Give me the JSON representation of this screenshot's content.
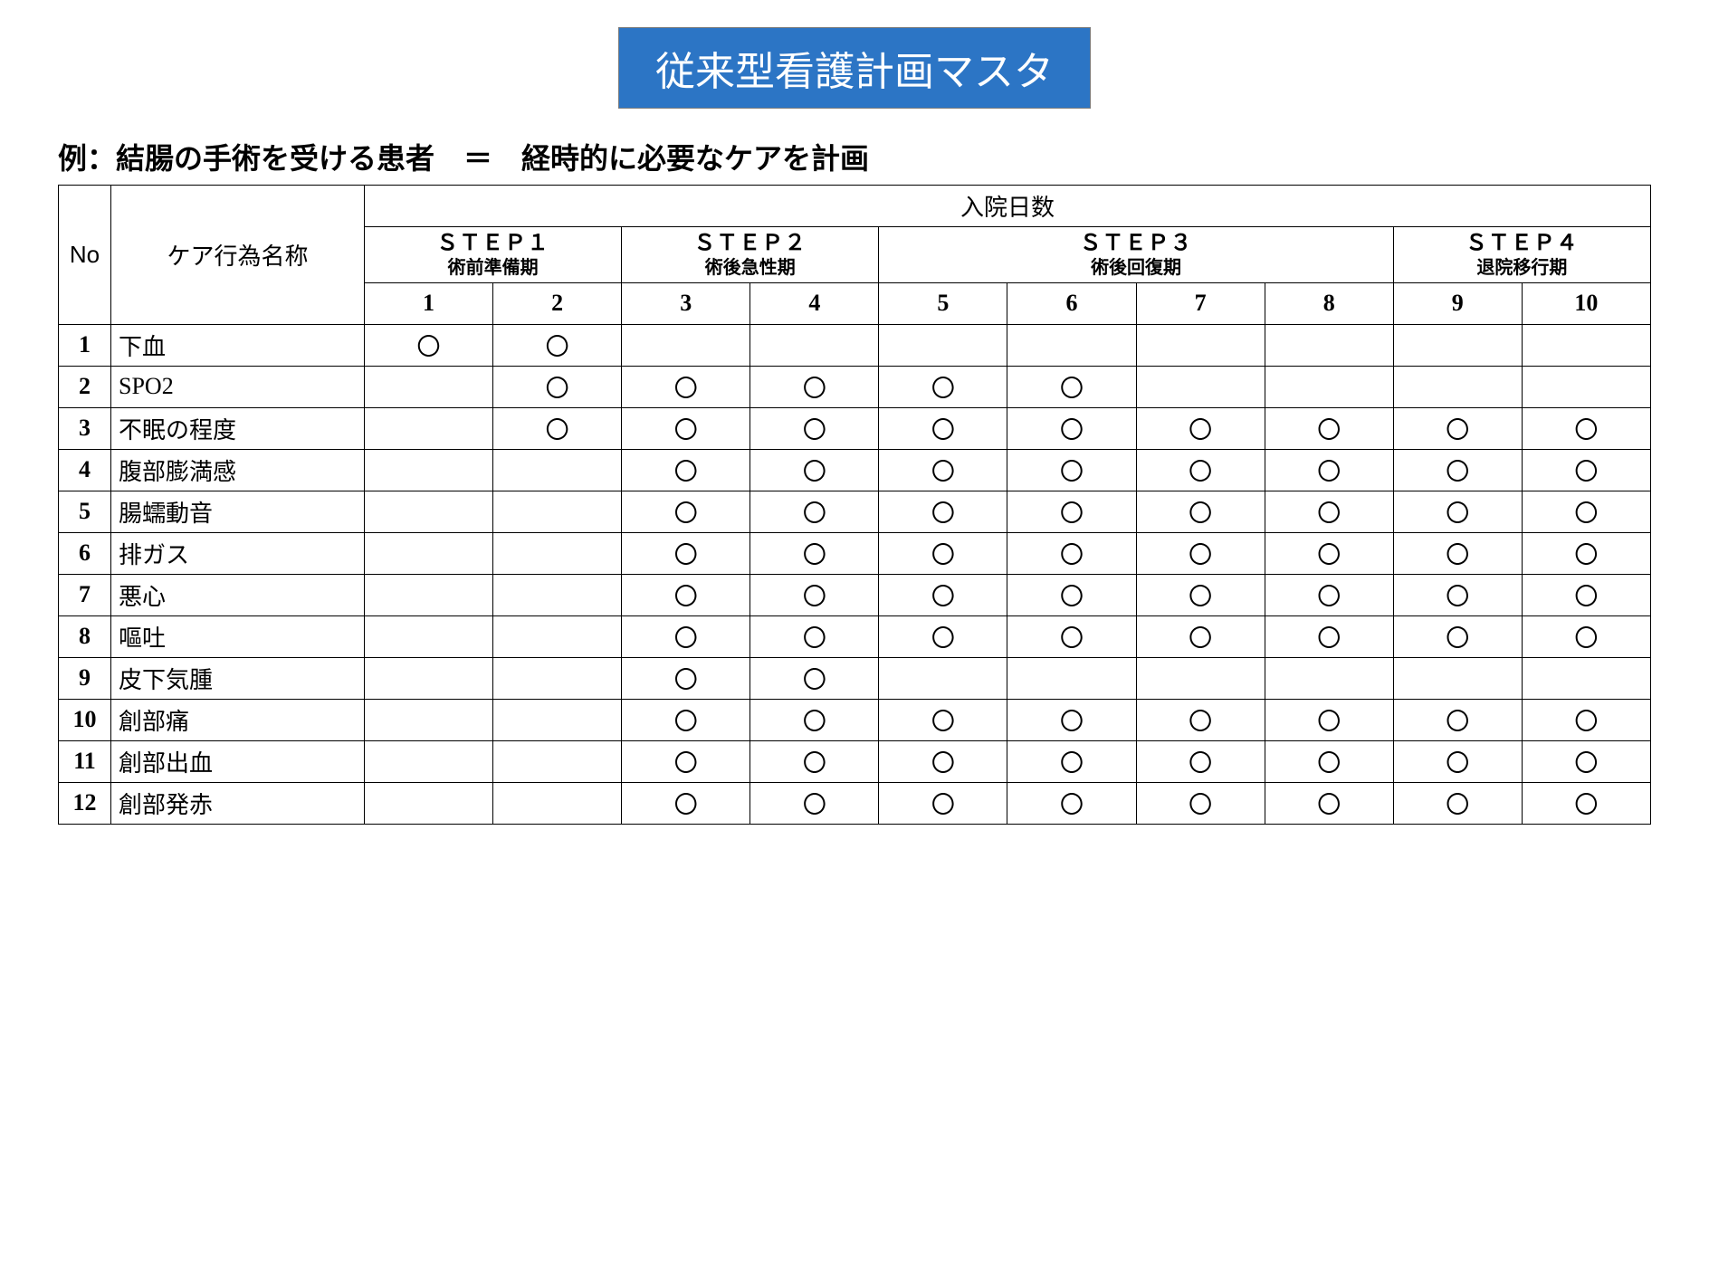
{
  "title": {
    "text": "従来型看護計画マスタ",
    "bg_color": "#2c75c5",
    "fg_color": "#ffffff"
  },
  "subtitle": "例：結腸の手術を受ける患者　＝　経時的に必要なケアを計画",
  "headers": {
    "no": "No",
    "care_name": "ケア行為名称",
    "days_label": "入院日数"
  },
  "steps": [
    {
      "label": "ＳＴＥＰ１",
      "sub": "術前準備期",
      "span": 2
    },
    {
      "label": "ＳＴＥＰ２",
      "sub": "術後急性期",
      "span": 2
    },
    {
      "label": "ＳＴＥＰ３",
      "sub": "術後回復期",
      "span": 4
    },
    {
      "label": "ＳＴＥＰ４",
      "sub": "退院移行期",
      "span": 2
    }
  ],
  "day_labels": [
    "1",
    "2",
    "3",
    "4",
    "5",
    "6",
    "7",
    "8",
    "9",
    "10"
  ],
  "mark_symbol": "〇",
  "rows": [
    {
      "no": "1",
      "name": "下血",
      "days": [
        1,
        1,
        0,
        0,
        0,
        0,
        0,
        0,
        0,
        0
      ]
    },
    {
      "no": "2",
      "name": "SPO2",
      "days": [
        0,
        1,
        1,
        1,
        1,
        1,
        0,
        0,
        0,
        0
      ]
    },
    {
      "no": "3",
      "name": "不眠の程度",
      "days": [
        0,
        1,
        1,
        1,
        1,
        1,
        1,
        1,
        1,
        1
      ]
    },
    {
      "no": "4",
      "name": "腹部膨満感",
      "days": [
        0,
        0,
        1,
        1,
        1,
        1,
        1,
        1,
        1,
        1
      ]
    },
    {
      "no": "5",
      "name": "腸蠕動音",
      "days": [
        0,
        0,
        1,
        1,
        1,
        1,
        1,
        1,
        1,
        1
      ]
    },
    {
      "no": "6",
      "name": "排ガス",
      "days": [
        0,
        0,
        1,
        1,
        1,
        1,
        1,
        1,
        1,
        1
      ]
    },
    {
      "no": "7",
      "name": "悪心",
      "days": [
        0,
        0,
        1,
        1,
        1,
        1,
        1,
        1,
        1,
        1
      ]
    },
    {
      "no": "8",
      "name": "嘔吐",
      "days": [
        0,
        0,
        1,
        1,
        1,
        1,
        1,
        1,
        1,
        1
      ]
    },
    {
      "no": "9",
      "name": "皮下気腫",
      "days": [
        0,
        0,
        1,
        1,
        0,
        0,
        0,
        0,
        0,
        0
      ]
    },
    {
      "no": "10",
      "name": "創部痛",
      "days": [
        0,
        0,
        1,
        1,
        1,
        1,
        1,
        1,
        1,
        1
      ]
    },
    {
      "no": "11",
      "name": "創部出血",
      "days": [
        0,
        0,
        1,
        1,
        1,
        1,
        1,
        1,
        1,
        1
      ]
    },
    {
      "no": "12",
      "name": "創部発赤",
      "days": [
        0,
        0,
        1,
        1,
        1,
        1,
        1,
        1,
        1,
        1
      ]
    }
  ]
}
